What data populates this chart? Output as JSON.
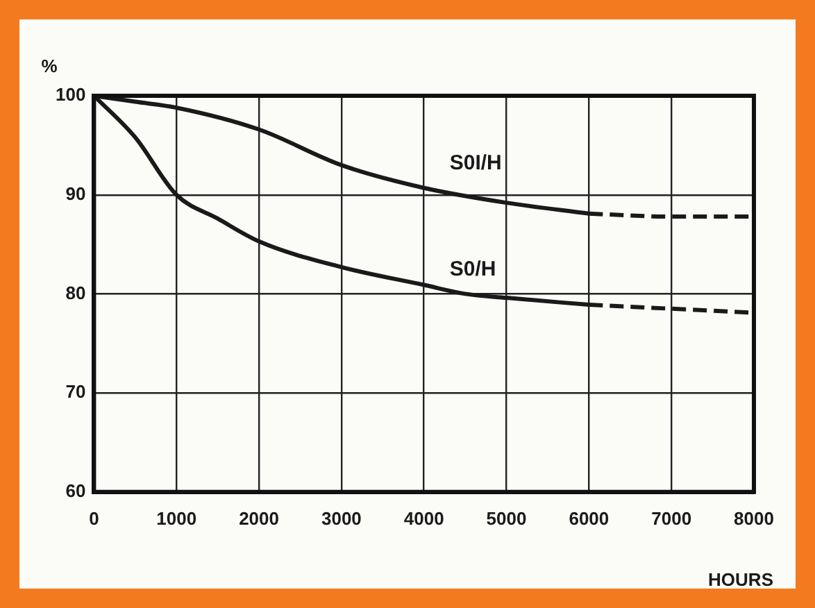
{
  "chart_data": {
    "type": "line",
    "xlabel": "HOURS",
    "ylabel": "%",
    "xlim": [
      0,
      8000
    ],
    "xticks": [
      0,
      1000,
      2000,
      3000,
      4000,
      5000,
      6000,
      7000,
      8000
    ],
    "ylim": [
      60,
      100
    ],
    "yticks": [
      60,
      70,
      80,
      90,
      100
    ],
    "grid": true,
    "legend": false,
    "marker": "none",
    "series": [
      {
        "name": "S0I/H",
        "color": "#1a1a1a",
        "line_style": "solid",
        "x": [
          0,
          500,
          1000,
          2000,
          3000,
          4000,
          5000,
          6000
        ],
        "values": [
          100,
          99.4,
          98.8,
          96.6,
          93.0,
          90.7,
          89.2,
          88.1
        ]
      },
      {
        "color": "#1a1a1a",
        "line_style": "dashed",
        "x": [
          6000,
          7000,
          8000
        ],
        "values": [
          88.1,
          87.8,
          87.8
        ]
      },
      {
        "name": "S0/H",
        "color": "#1a1a1a",
        "line_style": "solid",
        "x": [
          0,
          500,
          1000,
          1500,
          2000,
          3000,
          4000,
          4500,
          5000,
          6000
        ],
        "values": [
          100,
          95.8,
          90.0,
          87.6,
          85.3,
          82.7,
          80.9,
          80.0,
          79.6,
          78.9
        ]
      },
      {
        "color": "#1a1a1a",
        "line_style": "dashed",
        "x": [
          6000,
          7000,
          8000
        ],
        "values": [
          78.9,
          78.5,
          78.1
        ]
      }
    ]
  }
}
